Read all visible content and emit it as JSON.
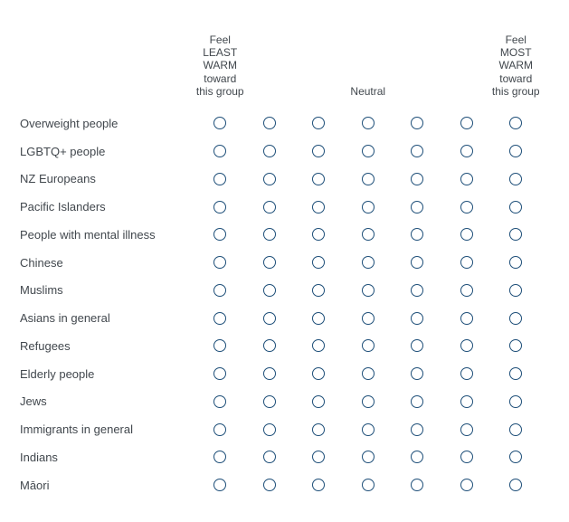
{
  "matrix": {
    "scale_headers": {
      "least": "Feel LEAST WARM toward this group",
      "neutral": "Neutral",
      "most": "Feel MOST WARM toward this group"
    },
    "num_options": 7,
    "rows": [
      {
        "label": "Overweight people",
        "selected": null
      },
      {
        "label": "LGBTQ+ people",
        "selected": null
      },
      {
        "label": "NZ Europeans",
        "selected": null
      },
      {
        "label": "Pacific Islanders",
        "selected": null
      },
      {
        "label": "People with mental illness",
        "selected": null
      },
      {
        "label": "Chinese",
        "selected": null
      },
      {
        "label": "Muslims",
        "selected": null
      },
      {
        "label": "Asians in general",
        "selected": null
      },
      {
        "label": "Refugees",
        "selected": null
      },
      {
        "label": "Elderly people",
        "selected": null
      },
      {
        "label": "Jews",
        "selected": null
      },
      {
        "label": "Immigrants in general",
        "selected": null
      },
      {
        "label": "Indians",
        "selected": null
      },
      {
        "label": "Māori",
        "selected": null
      }
    ]
  },
  "colors": {
    "background": "#ffffff",
    "text": "#41474d",
    "radio_border": "#1d4e78"
  }
}
